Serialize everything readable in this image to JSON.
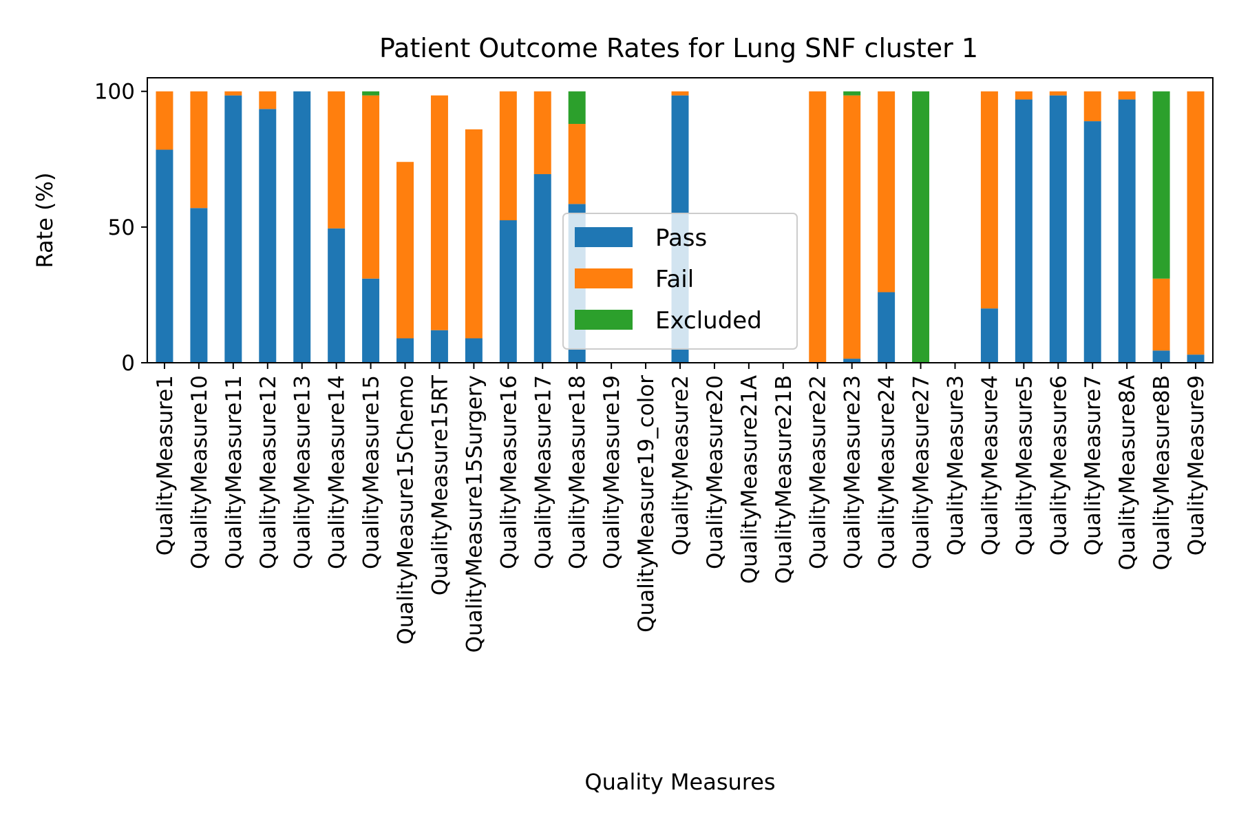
{
  "chart_data": {
    "type": "bar",
    "stacked": true,
    "title": "Patient Outcome Rates for Lung SNF cluster 1",
    "xlabel": "Quality Measures",
    "ylabel": "Rate (%)",
    "ylim": [
      0,
      105
    ],
    "yticks": [
      0,
      50,
      100
    ],
    "grid": false,
    "legend_position": "center",
    "categories": [
      "QualityMeasure1",
      "QualityMeasure10",
      "QualityMeasure11",
      "QualityMeasure12",
      "QualityMeasure13",
      "QualityMeasure14",
      "QualityMeasure15",
      "QualityMeasure15Chemo",
      "QualityMeasure15RT",
      "QualityMeasure15Surgery",
      "QualityMeasure16",
      "QualityMeasure17",
      "QualityMeasure18",
      "QualityMeasure19",
      "QualityMeasure19_color",
      "QualityMeasure2",
      "QualityMeasure20",
      "QualityMeasure21A",
      "QualityMeasure21B",
      "QualityMeasure22",
      "QualityMeasure23",
      "QualityMeasure24",
      "QualityMeasure27",
      "QualityMeasure3",
      "QualityMeasure4",
      "QualityMeasure5",
      "QualityMeasure6",
      "QualityMeasure7",
      "QualityMeasure8A",
      "QualityMeasure8B",
      "QualityMeasure9"
    ],
    "series": [
      {
        "name": "Pass",
        "color": "#1f77b4",
        "values": [
          78.5,
          57,
          98.5,
          93.5,
          100,
          49.5,
          31,
          9,
          12,
          9,
          52.5,
          69.5,
          58.5,
          0,
          0,
          98.5,
          0,
          0,
          0,
          0,
          1.5,
          26,
          0,
          0,
          20,
          97,
          98.5,
          89,
          97,
          4.5,
          3
        ]
      },
      {
        "name": "Fail",
        "color": "#ff7f0e",
        "values": [
          21.5,
          43,
          1.5,
          6.5,
          0,
          50.5,
          67.5,
          65,
          86.5,
          77,
          47.5,
          30.5,
          29.5,
          0,
          0,
          1.5,
          0,
          0,
          0,
          100,
          97,
          74,
          0,
          0,
          80,
          3,
          1.5,
          11,
          3,
          26.5,
          97
        ]
      },
      {
        "name": "Excluded",
        "color": "#2ca02c",
        "values": [
          0,
          0,
          0,
          0,
          0,
          0,
          1.5,
          0,
          0,
          0,
          0,
          0,
          12,
          0,
          0,
          0,
          0,
          0,
          0,
          0,
          1.5,
          0,
          100,
          0,
          0,
          0,
          0,
          0,
          0,
          69,
          0
        ]
      }
    ]
  }
}
